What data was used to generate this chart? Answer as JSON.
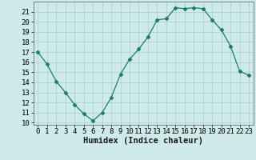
{
  "x": [
    0,
    1,
    2,
    3,
    4,
    5,
    6,
    7,
    8,
    9,
    10,
    11,
    12,
    13,
    14,
    15,
    16,
    17,
    18,
    19,
    20,
    21,
    22,
    23
  ],
  "y": [
    17,
    15.8,
    14.1,
    13.0,
    11.8,
    10.9,
    10.2,
    11.0,
    12.5,
    14.8,
    16.3,
    17.3,
    18.5,
    20.2,
    20.3,
    21.4,
    21.3,
    21.4,
    21.3,
    20.2,
    19.2,
    17.6,
    15.1,
    14.7
  ],
  "xlim": [
    -0.5,
    23.5
  ],
  "ylim": [
    9.8,
    22.0
  ],
  "yticks": [
    10,
    11,
    12,
    13,
    14,
    15,
    16,
    17,
    18,
    19,
    20,
    21
  ],
  "xticks": [
    0,
    1,
    2,
    3,
    4,
    5,
    6,
    7,
    8,
    9,
    10,
    11,
    12,
    13,
    14,
    15,
    16,
    17,
    18,
    19,
    20,
    21,
    22,
    23
  ],
  "xlabel": "Humidex (Indice chaleur)",
  "line_color": "#1a7a6e",
  "marker": "D",
  "marker_size": 2.5,
  "bg_color": "#ceeaea",
  "grid_color": "#a8cccc",
  "tick_label_fontsize": 6.5,
  "xlabel_fontsize": 7.5
}
